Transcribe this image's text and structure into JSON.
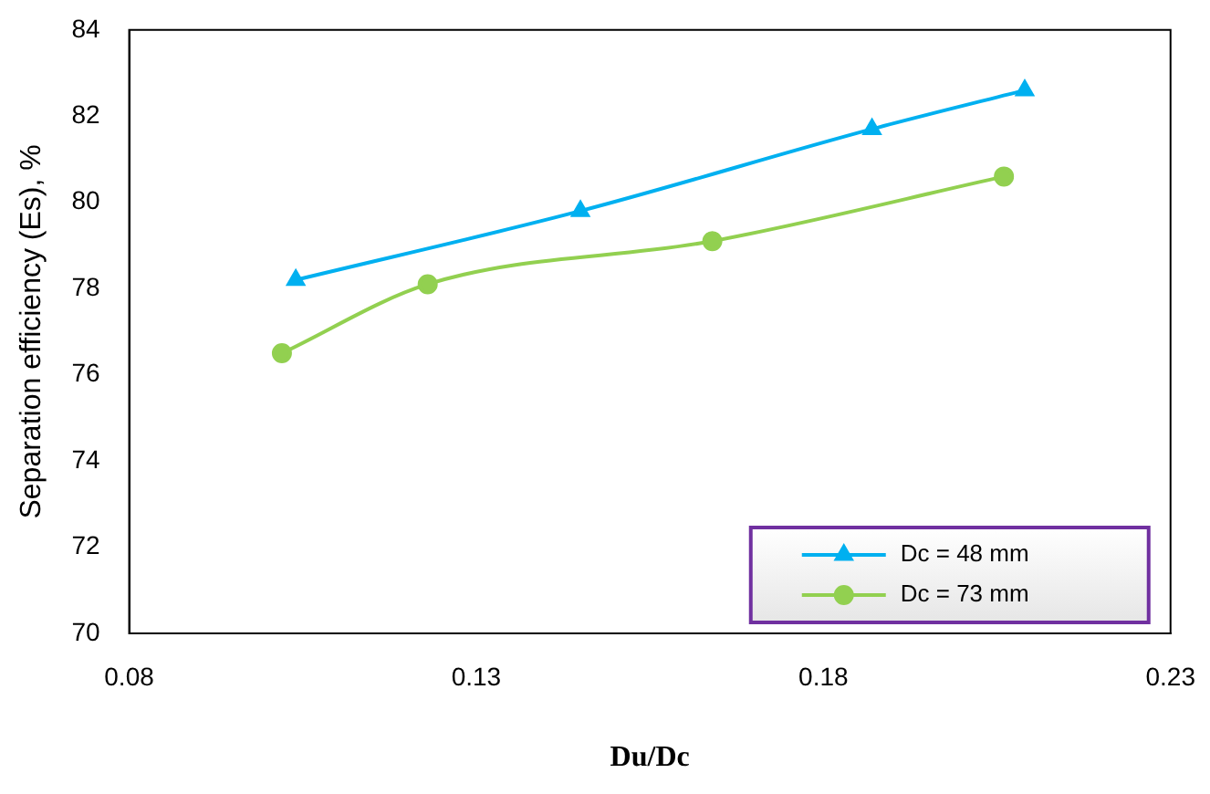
{
  "chart_data": {
    "type": "line",
    "xlabel": "Du/Dc",
    "ylabel": "Separation efficiency (Es), %",
    "xlim": [
      0.08,
      0.23
    ],
    "xticks": [
      0.08,
      0.13,
      0.18,
      0.23
    ],
    "ylim": [
      70,
      84
    ],
    "yticks": [
      70,
      72,
      74,
      76,
      78,
      80,
      82,
      84
    ],
    "grid": false,
    "legend": "bottom right",
    "series": [
      {
        "name": "Dc = 48 mm",
        "color": "#00b0f0",
        "marker": "triangle",
        "x": [
          0.104,
          0.145,
          0.187,
          0.209
        ],
        "values": [
          78.2,
          79.8,
          81.7,
          82.6
        ]
      },
      {
        "name": "Dc = 73 mm",
        "color": "#92d050",
        "marker": "circle",
        "x": [
          0.102,
          0.123,
          0.164,
          0.206
        ],
        "values": [
          76.5,
          78.1,
          79.1,
          80.6
        ]
      }
    ]
  }
}
